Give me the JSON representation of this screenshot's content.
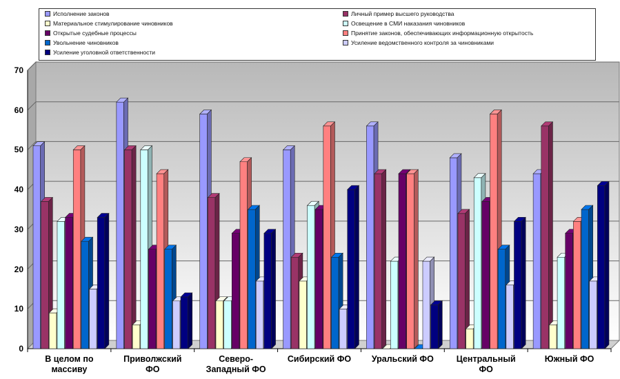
{
  "chart_data": {
    "type": "bar",
    "title": "",
    "xlabel": "",
    "ylabel": "",
    "ylim": [
      0,
      70
    ],
    "yticks": [
      "0",
      "10",
      "20",
      "30",
      "40",
      "50",
      "60",
      "70"
    ],
    "legend_position": "top",
    "grid": true,
    "categories": [
      "В целом по\nмассиву",
      "Приволжский\nФО",
      "Северо-\nЗападный ФО",
      "Сибирский ФО",
      "Уральский ФО",
      "Центральный\nФО",
      "Южный ФО"
    ],
    "series": [
      {
        "name": "Исполнение законов",
        "color": "#9999ff",
        "values": [
          51,
          62,
          59,
          50,
          56,
          48,
          44
        ]
      },
      {
        "name": "Личный пример высшего руководства",
        "color": "#993366",
        "values": [
          37,
          50,
          38,
          23,
          44,
          34,
          56
        ]
      },
      {
        "name": "Материальное стимулирование чиновников",
        "color": "#ffffcc",
        "values": [
          9,
          6,
          12,
          17,
          0,
          5,
          6
        ]
      },
      {
        "name": "Освещение в СМИ наказания чиновников",
        "color": "#ccffff",
        "values": [
          32,
          50,
          12,
          36,
          22,
          43,
          23
        ]
      },
      {
        "name": "Открытые судебные процессы",
        "color": "#660066",
        "values": [
          33,
          25,
          29,
          35,
          44,
          37,
          29
        ]
      },
      {
        "name": "Принятие законов, обеспечивающих информационную открытость",
        "color": "#ff8080",
        "values": [
          50,
          44,
          47,
          56,
          44,
          59,
          32
        ]
      },
      {
        "name": "Увольнение чиновников",
        "color": "#0066cc",
        "values": [
          27,
          25,
          35,
          23,
          0,
          25,
          35
        ]
      },
      {
        "name": "Усиление ведомственного контроля за чиновниками",
        "color": "#ccccff",
        "values": [
          15,
          12,
          17,
          10,
          22,
          16,
          17
        ]
      },
      {
        "name": "Усиление уголовной ответственности",
        "color": "#000080",
        "values": [
          33,
          13,
          29,
          40,
          11,
          32,
          41
        ]
      }
    ]
  }
}
